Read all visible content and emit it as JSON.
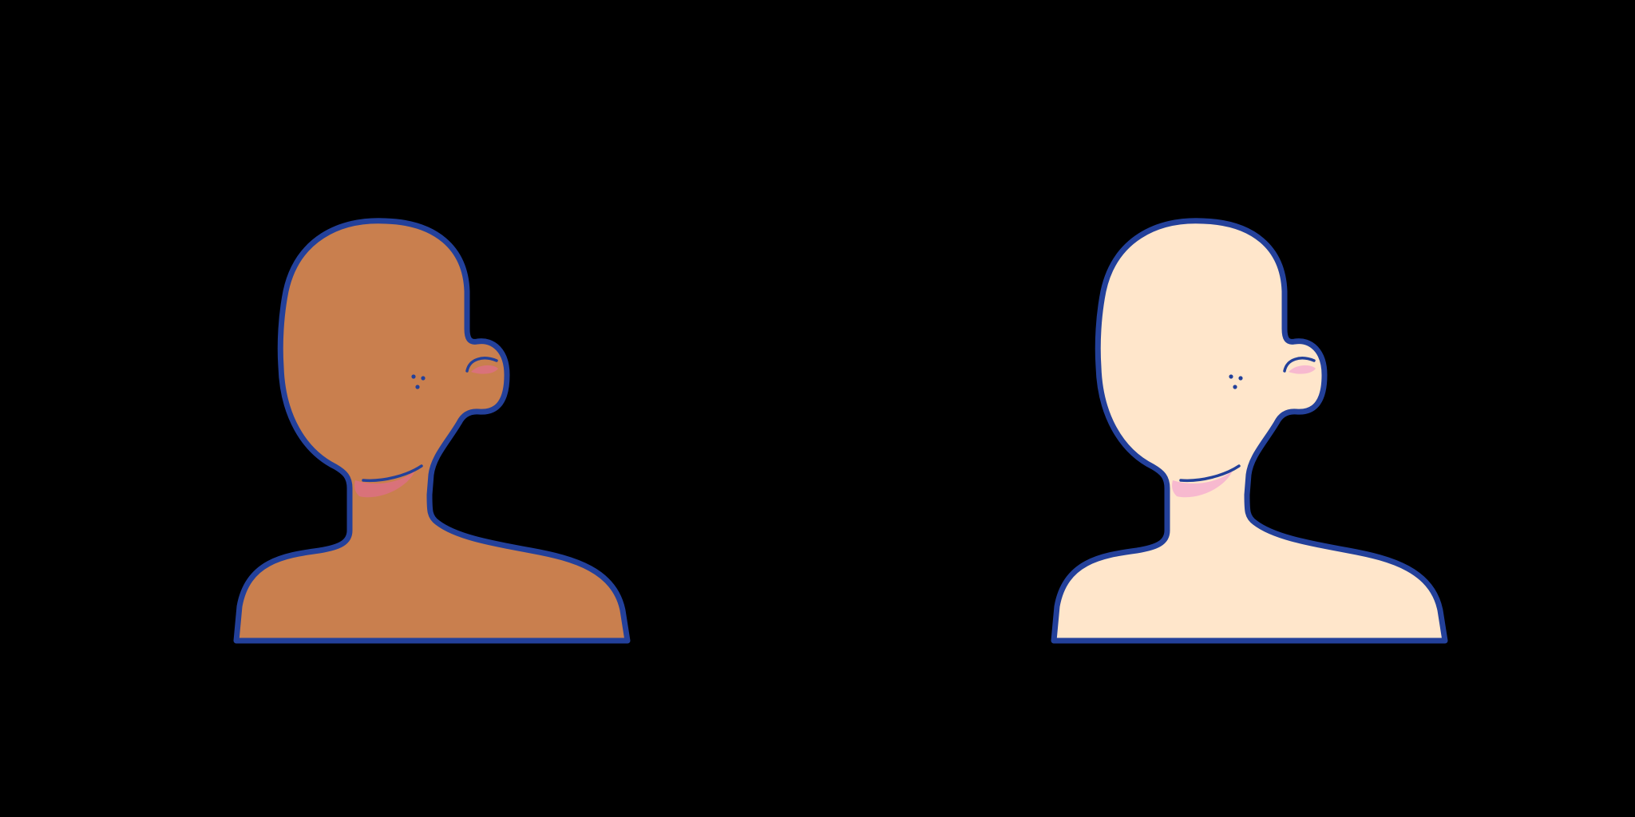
{
  "canvas": {
    "background": "#000000"
  },
  "figures": [
    {
      "name": "dark-skin-bust",
      "skin_color": "#c97f4e",
      "blush_color": "#d9727a",
      "outline_color": "#23409a"
    },
    {
      "name": "light-skin-bust",
      "skin_color": "#ffe6cb",
      "blush_color": "#f7b9cf",
      "outline_color": "#23409a"
    }
  ]
}
